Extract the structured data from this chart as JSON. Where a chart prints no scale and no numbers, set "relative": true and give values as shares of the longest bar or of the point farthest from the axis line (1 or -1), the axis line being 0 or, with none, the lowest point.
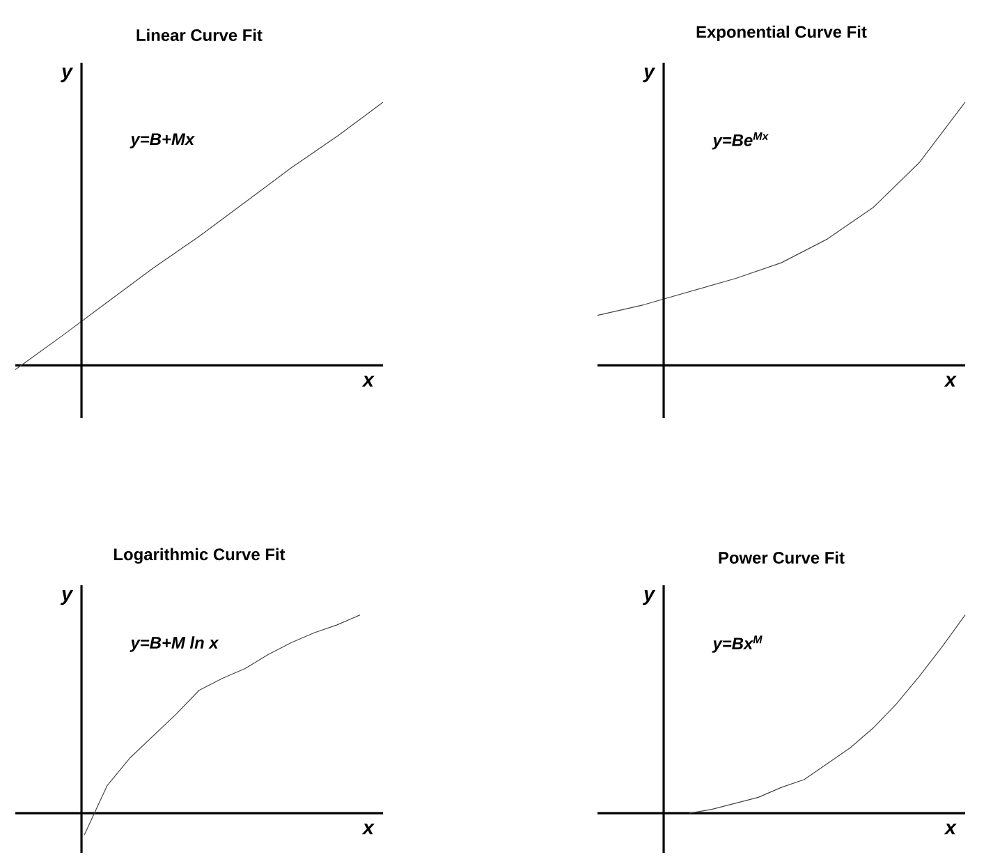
{
  "chart_data": [
    {
      "type": "line",
      "title": "Linear Curve Fit",
      "xlabel": "x",
      "ylabel": "y",
      "annotations": [
        "y=B+Mx"
      ],
      "relative": true,
      "tick_labels": false,
      "marker": "none",
      "color": "#444444",
      "categories": [
        null,
        null,
        null,
        null,
        null,
        null,
        null,
        null,
        null
      ],
      "values": [
        -0.016,
        0.11,
        0.24,
        0.37,
        0.49,
        0.62,
        0.75,
        0.87,
        1
      ]
    },
    {
      "type": "line",
      "title": "Exponential Curve Fit",
      "xlabel": "x",
      "ylabel": "y",
      "annotations": [
        "y=Be$^{Mx}$"
      ],
      "relative": true,
      "tick_labels": false,
      "marker": "none",
      "color": "#444444",
      "categories": [
        null,
        null,
        null,
        null,
        null,
        null,
        null,
        null,
        null
      ],
      "values": [
        0.19,
        0.23,
        0.28,
        0.33,
        0.39,
        0.48,
        0.6,
        0.77,
        1
      ]
    },
    {
      "type": "line",
      "title": "Logarithmic Curve Fit",
      "xlabel": "x",
      "ylabel": "y",
      "annotations": [
        "y=B+M  ln x"
      ],
      "relative": true,
      "tick_labels": false,
      "marker": "none",
      "color": "#444444",
      "categories": [
        null,
        null,
        null,
        null,
        null,
        null,
        null,
        null,
        null,
        null,
        null,
        null,
        null,
        null,
        null,
        null,
        null
      ],
      "values": [
        null,
        null,
        null,
        -0.11,
        0.14,
        0.28,
        0.39,
        0.5,
        0.62,
        0.68,
        0.73,
        0.8,
        0.86,
        0.91,
        0.95,
        1,
        null
      ]
    },
    {
      "type": "line",
      "title": "Power Curve Fit",
      "xlabel": "x",
      "ylabel": "y",
      "annotations": [
        "y=Bx$^{M}$"
      ],
      "relative": true,
      "tick_labels": false,
      "marker": "none",
      "color": "#444444",
      "categories": [
        null,
        null,
        null,
        null,
        null,
        null,
        null,
        null,
        null,
        null,
        null,
        null,
        null,
        null,
        null,
        null,
        null
      ],
      "values": [
        null,
        null,
        null,
        null,
        0,
        0.02,
        0.05,
        0.08,
        0.13,
        0.17,
        0.25,
        0.33,
        0.43,
        0.55,
        0.69,
        0.84,
        1
      ]
    }
  ]
}
